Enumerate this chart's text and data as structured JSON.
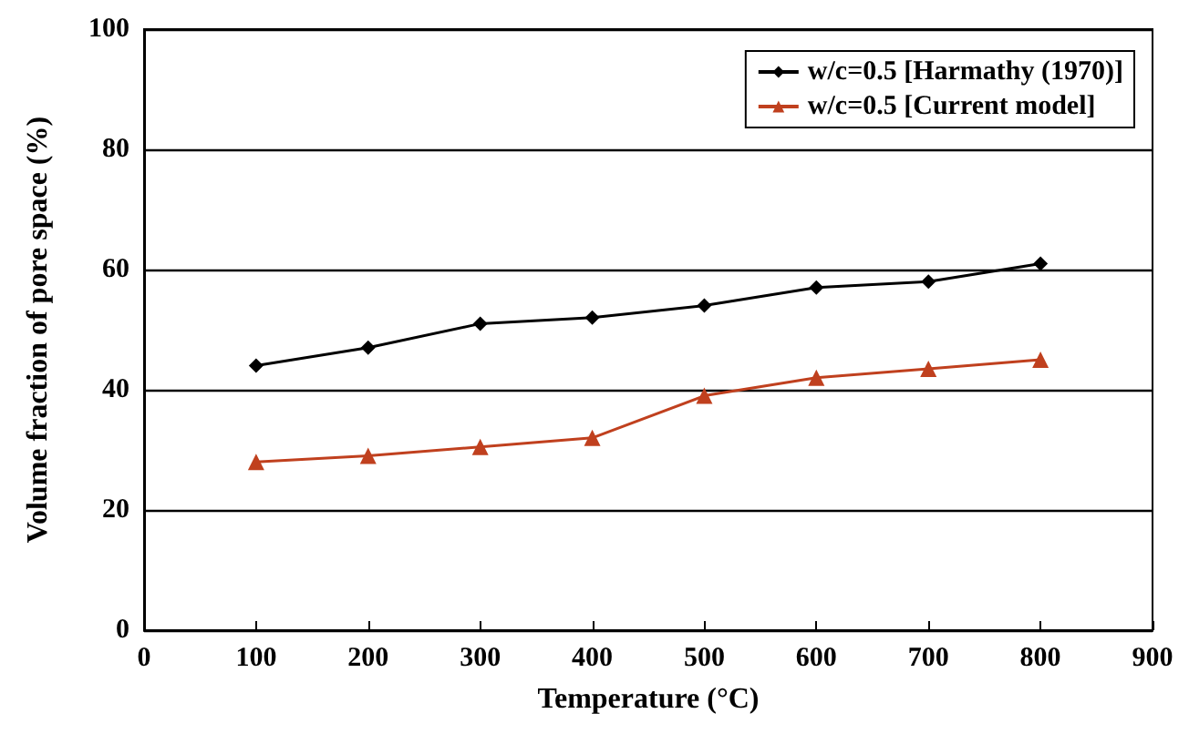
{
  "chart_data": {
    "type": "line",
    "xlabel": "Temperature (°C)",
    "ylabel": "Volume fraction of pore space (%)",
    "x": [
      100,
      200,
      300,
      400,
      500,
      600,
      700,
      800
    ],
    "series": [
      {
        "name": "w/c=0.5 [Harmathy (1970)]",
        "color": "#000000",
        "marker": "diamond",
        "values": [
          44,
          47,
          51,
          52,
          54,
          57,
          58,
          61
        ]
      },
      {
        "name": "w/c=0.5 [Current model]",
        "color": "#c0401e",
        "marker": "triangle",
        "values": [
          28,
          29,
          30.5,
          32,
          39,
          42,
          43.5,
          45
        ]
      }
    ],
    "xlim": [
      0,
      900
    ],
    "xticks": [
      0,
      100,
      200,
      300,
      400,
      500,
      600,
      700,
      800,
      900
    ],
    "ylim": [
      0,
      100
    ],
    "yticks": [
      0,
      20,
      40,
      60,
      80,
      100
    ],
    "grid": "y",
    "legend": "top right",
    "line_style": "solid"
  }
}
